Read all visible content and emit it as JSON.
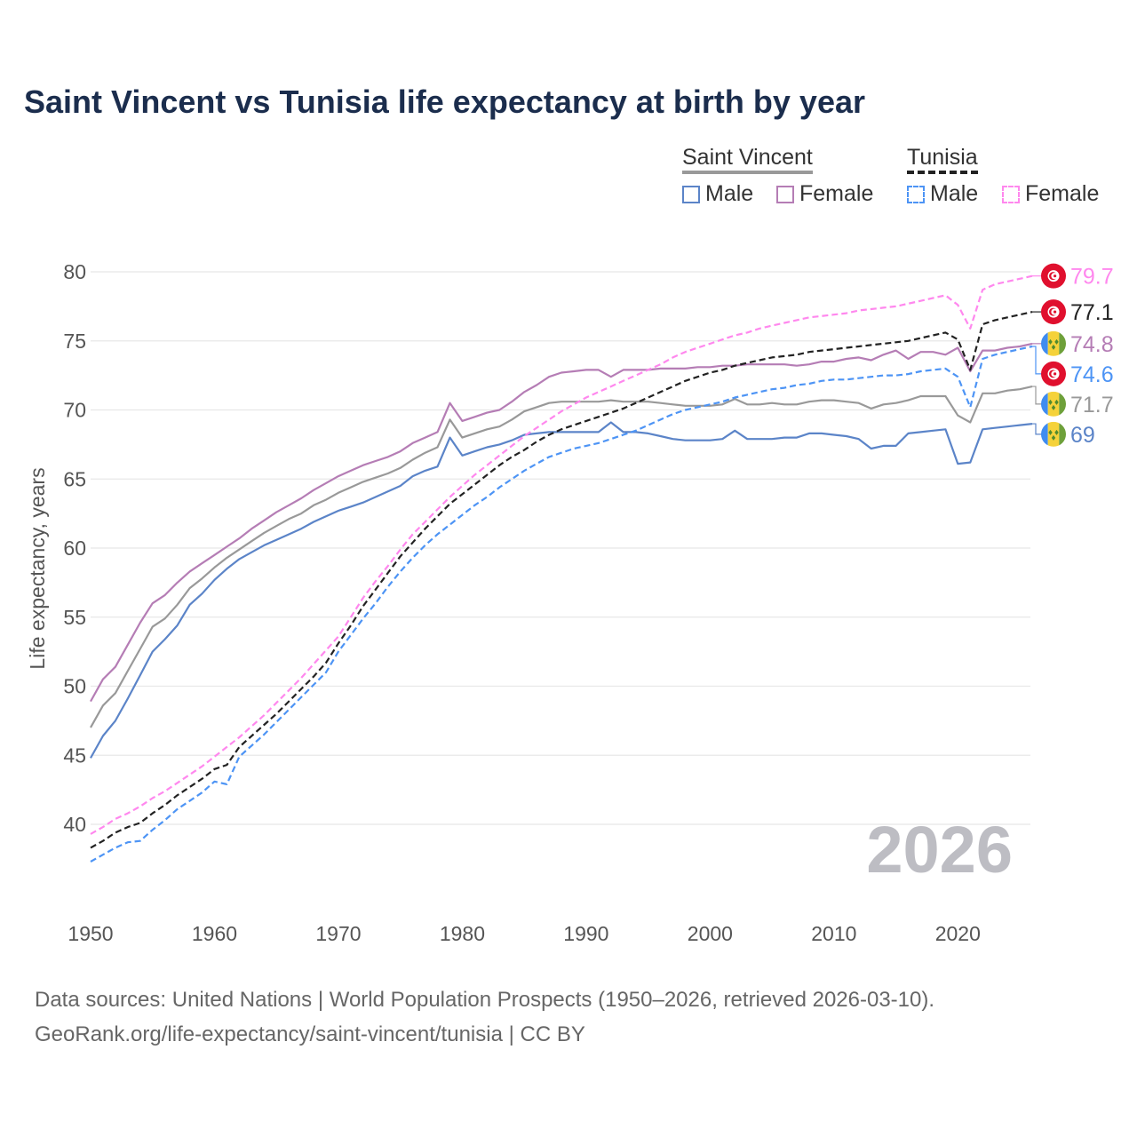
{
  "title": "Saint Vincent vs Tunisia life expectancy at birth by year",
  "legend": {
    "groups": [
      {
        "name": "Saint Vincent",
        "male": "Male",
        "female": "Female"
      },
      {
        "name": "Tunisia",
        "male": "Male",
        "female": "Female"
      }
    ]
  },
  "source": {
    "line1": "Data sources: United Nations | World Population Prospects (1950–2026, retrieved 2026-03-10).",
    "line2": "GeoRank.org/life-expectancy/saint-vincent/tunisia | CC BY"
  },
  "chart_data": {
    "type": "line",
    "title": "Saint Vincent vs Tunisia life expectancy at birth by year",
    "xlabel": "",
    "ylabel": "Life expectancy, years",
    "xlim": [
      1950,
      2026
    ],
    "ylim": [
      35,
      80
    ],
    "x_ticks": [
      1950,
      1960,
      1970,
      1980,
      1990,
      2000,
      2010,
      2020
    ],
    "y_ticks": [
      40,
      45,
      50,
      55,
      60,
      65,
      70,
      75,
      80
    ],
    "grid": true,
    "year_watermark": "2026",
    "x_start": 1950,
    "series": [
      {
        "name": "Saint Vincent Male",
        "country": "Saint Vincent",
        "color": "#5b84c8",
        "dashed": false,
        "flag": "vc",
        "end_label": "69",
        "values": [
          44.8,
          46.4,
          47.5,
          49.1,
          50.8,
          52.5,
          53.4,
          54.4,
          55.9,
          56.7,
          57.7,
          58.5,
          59.2,
          59.7,
          60.2,
          60.6,
          61.0,
          61.4,
          61.9,
          62.3,
          62.7,
          63.0,
          63.3,
          63.7,
          64.1,
          64.5,
          65.2,
          65.6,
          65.9,
          68.0,
          66.7,
          67.0,
          67.3,
          67.5,
          67.8,
          68.2,
          68.3,
          68.4,
          68.4,
          68.4,
          68.4,
          68.4,
          69.1,
          68.4,
          68.4,
          68.3,
          68.1,
          67.9,
          67.8,
          67.8,
          67.8,
          67.9,
          68.5,
          67.9,
          67.9,
          67.9,
          68.0,
          68.0,
          68.3,
          68.3,
          68.2,
          68.1,
          67.9,
          67.2,
          67.4,
          67.4,
          68.3,
          68.4,
          68.5,
          68.6,
          66.1,
          66.2,
          68.6,
          68.7,
          68.8,
          68.9,
          69.0
        ]
      },
      {
        "name": "Saint Vincent Female",
        "country": "Saint Vincent",
        "color": "#b57db5",
        "dashed": false,
        "flag": "vc",
        "end_label": "74.8",
        "values": [
          48.9,
          50.5,
          51.4,
          53.0,
          54.6,
          56.0,
          56.6,
          57.5,
          58.3,
          58.9,
          59.5,
          60.1,
          60.7,
          61.4,
          62.0,
          62.6,
          63.1,
          63.6,
          64.2,
          64.7,
          65.2,
          65.6,
          66.0,
          66.3,
          66.6,
          67.0,
          67.6,
          68.0,
          68.4,
          70.5,
          69.2,
          69.5,
          69.8,
          70.0,
          70.6,
          71.3,
          71.8,
          72.4,
          72.7,
          72.8,
          72.9,
          72.9,
          72.4,
          72.9,
          72.9,
          72.9,
          73.0,
          73.0,
          73.0,
          73.1,
          73.1,
          73.2,
          73.2,
          73.3,
          73.3,
          73.3,
          73.3,
          73.2,
          73.3,
          73.5,
          73.5,
          73.7,
          73.8,
          73.6,
          74.0,
          74.3,
          73.7,
          74.2,
          74.2,
          74.0,
          74.5,
          72.8,
          74.3,
          74.3,
          74.5,
          74.6,
          74.8
        ]
      },
      {
        "name": "Saint Vincent",
        "country": "Saint Vincent",
        "color": "#999999",
        "dashed": false,
        "flag": "vc",
        "end_label": "71.7",
        "values": [
          47.0,
          48.6,
          49.5,
          51.1,
          52.7,
          54.3,
          54.9,
          55.9,
          57.1,
          57.8,
          58.6,
          59.3,
          59.9,
          60.5,
          61.1,
          61.6,
          62.1,
          62.5,
          63.1,
          63.5,
          64.0,
          64.4,
          64.8,
          65.1,
          65.4,
          65.8,
          66.4,
          66.9,
          67.3,
          69.3,
          68.0,
          68.3,
          68.6,
          68.8,
          69.3,
          69.9,
          70.2,
          70.5,
          70.6,
          70.6,
          70.6,
          70.6,
          70.7,
          70.6,
          70.6,
          70.6,
          70.5,
          70.4,
          70.3,
          70.3,
          70.3,
          70.4,
          70.8,
          70.4,
          70.4,
          70.5,
          70.4,
          70.4,
          70.6,
          70.7,
          70.7,
          70.6,
          70.5,
          70.1,
          70.4,
          70.5,
          70.7,
          71.0,
          71.0,
          71.0,
          69.6,
          69.1,
          71.2,
          71.2,
          71.4,
          71.5,
          71.7
        ]
      },
      {
        "name": "Tunisia Female",
        "country": "Tunisia",
        "color": "#ff88ee",
        "dashed": true,
        "flag": "tn",
        "end_label": "79.7",
        "values": [
          39.3,
          39.8,
          40.4,
          40.8,
          41.3,
          41.9,
          42.4,
          43.0,
          43.6,
          44.2,
          44.9,
          45.6,
          46.3,
          47.1,
          47.9,
          48.8,
          49.7,
          50.6,
          51.6,
          52.6,
          53.6,
          55.0,
          56.4,
          57.6,
          58.7,
          59.9,
          61.0,
          61.9,
          62.8,
          63.7,
          64.5,
          65.3,
          66.0,
          66.7,
          67.4,
          68.1,
          68.7,
          69.3,
          69.9,
          70.4,
          70.9,
          71.3,
          71.7,
          72.1,
          72.5,
          72.9,
          73.3,
          73.8,
          74.2,
          74.5,
          74.8,
          75.1,
          75.4,
          75.6,
          75.9,
          76.1,
          76.3,
          76.5,
          76.7,
          76.8,
          76.9,
          77.0,
          77.2,
          77.3,
          77.4,
          77.5,
          77.7,
          77.9,
          78.1,
          78.3,
          77.6,
          75.9,
          78.7,
          79.1,
          79.3,
          79.5,
          79.7
        ]
      },
      {
        "name": "Tunisia",
        "country": "Tunisia",
        "color": "#222222",
        "dashed": true,
        "flag": "tn",
        "end_label": "77.1",
        "values": [
          38.3,
          38.8,
          39.4,
          39.8,
          40.1,
          40.8,
          41.4,
          42.1,
          42.7,
          43.3,
          44.0,
          44.3,
          45.6,
          46.4,
          47.2,
          48.0,
          48.9,
          49.8,
          50.7,
          51.7,
          53.1,
          54.4,
          55.8,
          57.0,
          58.2,
          59.4,
          60.4,
          61.4,
          62.3,
          63.2,
          63.9,
          64.6,
          65.3,
          66.0,
          66.6,
          67.1,
          67.7,
          68.2,
          68.6,
          68.9,
          69.2,
          69.5,
          69.8,
          70.1,
          70.5,
          70.9,
          71.3,
          71.7,
          72.1,
          72.4,
          72.7,
          72.9,
          73.2,
          73.4,
          73.6,
          73.8,
          73.9,
          74.0,
          74.2,
          74.3,
          74.4,
          74.5,
          74.6,
          74.7,
          74.8,
          74.9,
          75.0,
          75.2,
          75.4,
          75.6,
          75.1,
          72.9,
          76.2,
          76.5,
          76.7,
          76.9,
          77.1
        ]
      },
      {
        "name": "Tunisia Male",
        "country": "Tunisia",
        "color": "#4d94f5",
        "dashed": true,
        "flag": "tn",
        "end_label": "74.6",
        "values": [
          37.3,
          37.8,
          38.3,
          38.7,
          38.8,
          39.6,
          40.3,
          41.1,
          41.7,
          42.3,
          43.1,
          42.9,
          44.9,
          45.7,
          46.5,
          47.4,
          48.3,
          49.2,
          50.1,
          51.0,
          52.5,
          53.7,
          54.9,
          56.0,
          57.2,
          58.3,
          59.3,
          60.2,
          61.0,
          61.7,
          62.4,
          63.1,
          63.7,
          64.4,
          65.0,
          65.6,
          66.1,
          66.6,
          66.9,
          67.2,
          67.4,
          67.6,
          67.9,
          68.2,
          68.5,
          68.9,
          69.3,
          69.7,
          70.0,
          70.2,
          70.4,
          70.6,
          70.9,
          71.1,
          71.3,
          71.5,
          71.6,
          71.8,
          71.9,
          72.1,
          72.2,
          72.2,
          72.3,
          72.4,
          72.5,
          72.5,
          72.6,
          72.8,
          72.9,
          73.0,
          72.4,
          70.2,
          73.7,
          74.0,
          74.2,
          74.4,
          74.6
        ]
      }
    ]
  }
}
